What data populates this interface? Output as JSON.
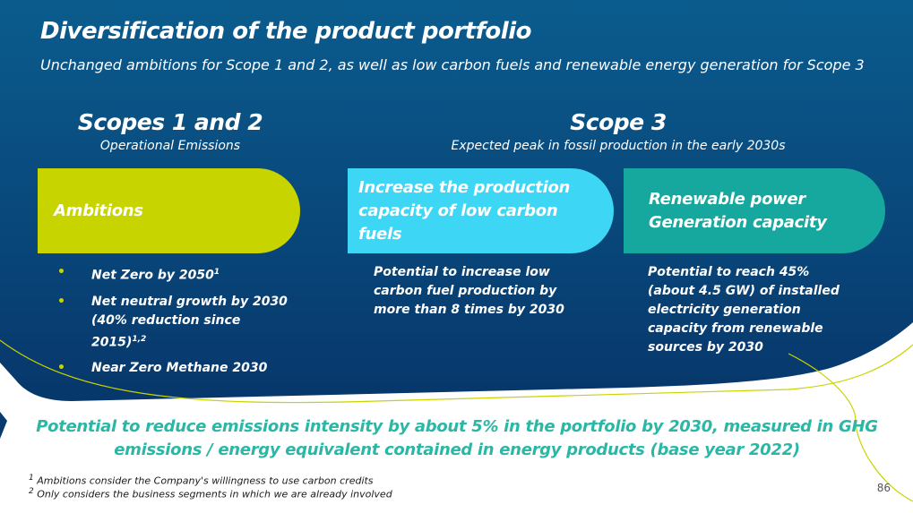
{
  "header": {
    "title": "Diversification of the product portfolio",
    "subtitle": "Unchanged ambitions for Scope 1 and 2, as well as low carbon fuels and renewable energy generation for Scope 3"
  },
  "sections": {
    "scope12": {
      "title": "Scopes 1 and 2",
      "subtitle": "Operational Emissions"
    },
    "scope3": {
      "title": "Scope 3",
      "subtitle": "Expected peak in fossil production in the early 2030s"
    }
  },
  "pills": {
    "ambitions": {
      "label": "Ambitions",
      "color": "#c8d400"
    },
    "low_carbon": {
      "label": "Increase the production capacity of low carbon fuels",
      "color": "#3dd6f5"
    },
    "renewable": {
      "label": "Renewable power Generation capacity",
      "color": "#16a89e"
    }
  },
  "ambitions_list": [
    {
      "text": "Net Zero by 2050",
      "sup": "1"
    },
    {
      "text": "Net neutral growth by 2030 (40% reduction since 2015)",
      "sup": "1,2"
    },
    {
      "text": "Near Zero Methane 2030",
      "sup": ""
    }
  ],
  "bullet_symbol": "•",
  "descriptions": {
    "low_carbon": "Potential to increase low carbon fuel production by more than 8 times by 2030",
    "renewable": "Potential to reach 45% (about 4.5 GW) of installed electricity generation capacity from renewable sources by 2030"
  },
  "bottom_message": "Potential to reduce emissions intensity by about 5% in the portfolio by 2030, measured in GHG emissions / energy equivalent contained in energy products (base year 2022)",
  "footnotes": {
    "f1_mark": "1",
    "f1": "Ambitions consider the Company's willingness to use carbon credits",
    "f2_mark": "2",
    "f2": "Only considers the business segments in which we are already involved"
  },
  "page_number": "86",
  "colors": {
    "navy_top": "#0a5a8c",
    "navy_bottom": "#083a6e",
    "accent_yellow": "#c8d400",
    "accent_teal_text": "#2ab7a5"
  }
}
